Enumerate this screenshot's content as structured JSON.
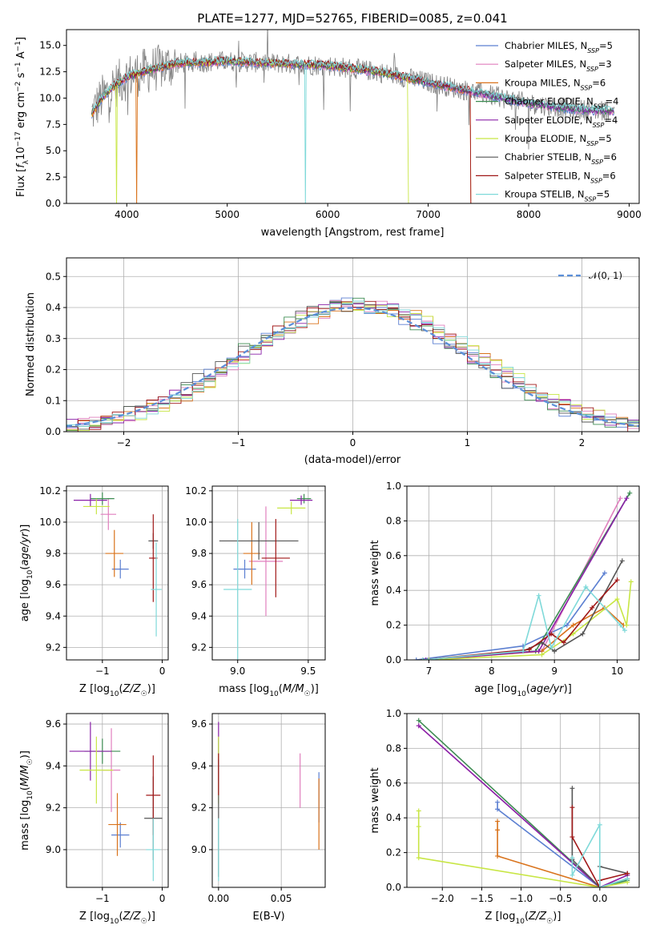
{
  "title": "PLATE=1277, MJD=52765, FIBERID=0085, z=0.041",
  "colors": {
    "Chabrier MILES": "#5b7fd1",
    "Salpeter MILES": "#e07fbd",
    "Kroupa MILES": "#d9731c",
    "Chabrier ELODIE": "#3d8c52",
    "Salpeter ELODIE": "#8a21a8",
    "Kroupa ELODIE": "#c8e645",
    "Chabrier STELIB": "#555555",
    "Salpeter STELIB": "#a01818",
    "Kroupa STELIB": "#7fd9d9",
    "data": "#808080",
    "gaussian": "#5b8fd8"
  },
  "chart_data": [
    {
      "id": "spectrum",
      "type": "line",
      "title": "PLATE=1277, MJD=52765, FIBERID=0085, z=0.041",
      "xlabel": "wavelength [Angstrom, rest frame]",
      "ylabel": "Flux [f_λ 10^-17 erg cm^-2 s^-1 A^-1]",
      "xlim": [
        3400,
        9100
      ],
      "ylim": [
        0,
        16.5
      ],
      "xticks": [
        4000,
        5000,
        6000,
        7000,
        8000,
        9000
      ],
      "yticks": [
        0.0,
        2.5,
        5.0,
        7.5,
        10.0,
        12.5,
        15.0
      ],
      "grid": false,
      "legend_position": "top-right",
      "legend": [
        {
          "name": "Chabrier MILES",
          "nssp": "5"
        },
        {
          "name": "Salpeter MILES",
          "nssp": "3"
        },
        {
          "name": "Kroupa MILES",
          "nssp": "6"
        },
        {
          "name": "Chabrier ELODIE",
          "nssp": "4"
        },
        {
          "name": "Salpeter ELODIE",
          "nssp": "4"
        },
        {
          "name": "Kroupa ELODIE",
          "nssp": "5"
        },
        {
          "name": "Chabrier STELIB",
          "nssp": "6"
        },
        {
          "name": "Salpeter STELIB",
          "nssp": "6"
        },
        {
          "name": "Kroupa STELIB",
          "nssp": "5"
        }
      ],
      "continuum": {
        "x": [
          3650,
          3750,
          3850,
          4000,
          4200,
          4500,
          5000,
          5500,
          6000,
          6500,
          7000,
          7500,
          8000,
          8500,
          8800
        ],
        "y": [
          8.5,
          10.0,
          11.0,
          12.0,
          12.6,
          13.3,
          13.5,
          13.3,
          13.1,
          12.5,
          11.5,
          10.5,
          9.5,
          8.9,
          8.8
        ]
      },
      "data_range": [
        3650,
        8800
      ],
      "model_range": [
        3650,
        8850
      ],
      "model_cutoffs": [
        {
          "model": "Kroupa ELODIE",
          "x": 6800
        },
        {
          "model": "Salpeter STELIB",
          "x": 7420
        },
        {
          "model": "Kroupa MILES",
          "x": 7420
        }
      ],
      "absorption_spikes": [
        {
          "x": 3900,
          "model": "Kroupa ELODIE"
        },
        {
          "x": 4100,
          "model": "Kroupa MILES"
        },
        {
          "x": 5780,
          "model": "Kroupa STELIB"
        },
        {
          "x": 6810,
          "model": "Kroupa ELODIE"
        }
      ]
    },
    {
      "id": "residual-histogram",
      "type": "bar",
      "xlabel": "(data-model)/error",
      "ylabel": "Normed distribution",
      "xlim": [
        -2.5,
        2.5
      ],
      "ylim": [
        0,
        0.56
      ],
      "xticks": [
        -2,
        -1,
        0,
        1,
        2
      ],
      "yticks": [
        0.0,
        0.1,
        0.2,
        0.3,
        0.4,
        0.5
      ],
      "grid": true,
      "bin_width": 0.1,
      "reference": {
        "name": "𝒩(0, 1)",
        "mean": 0,
        "sigma": 1
      },
      "legend_position": "top-right"
    },
    {
      "id": "age-vs-Z",
      "type": "scatter",
      "xlabel": "Z [log10(Z/Z☉)]",
      "ylabel": "age [log10(age/yr)]",
      "xlim": [
        -1.6,
        0.1
      ],
      "ylim": [
        9.12,
        10.23
      ],
      "xticks": [
        -1,
        0
      ],
      "yticks": [
        9.2,
        9.4,
        9.6,
        9.8,
        10.0,
        10.2
      ],
      "grid": true,
      "points": [
        {
          "model": "Chabrier MILES",
          "x": -0.7,
          "xerr": 0.14,
          "y": 9.7,
          "yerr": 0.06
        },
        {
          "model": "Salpeter MILES",
          "x": -0.9,
          "xerr": 0.13,
          "y": 10.05,
          "yerr": 0.1
        },
        {
          "model": "Kroupa MILES",
          "x": -0.8,
          "xerr": 0.15,
          "y": 9.8,
          "yerr": 0.15
        },
        {
          "model": "Chabrier ELODIE",
          "x": -1.0,
          "xerr": 0.2,
          "y": 10.15,
          "yerr": 0.04
        },
        {
          "model": "Salpeter ELODIE",
          "x": -1.2,
          "xerr": 0.28,
          "y": 10.14,
          "yerr": 0.04
        },
        {
          "model": "Kroupa ELODIE",
          "x": -1.1,
          "xerr": 0.22,
          "y": 10.1,
          "yerr": 0.05
        },
        {
          "model": "Chabrier STELIB",
          "x": -0.15,
          "xerr": 0.08,
          "y": 9.88,
          "yerr": 0.05
        },
        {
          "model": "Salpeter STELIB",
          "x": -0.15,
          "xerr": 0.07,
          "y": 9.77,
          "yerr": 0.28
        },
        {
          "model": "Kroupa STELIB",
          "x": -0.1,
          "xerr": 0.09,
          "y": 9.57,
          "yerr": 0.3
        }
      ]
    },
    {
      "id": "age-vs-mass",
      "type": "scatter",
      "xlabel": "mass [log10(M/M☉)]",
      "ylabel": "",
      "xlim": [
        8.82,
        9.62
      ],
      "ylim": [
        9.12,
        10.23
      ],
      "xticks": [
        9.0,
        9.5
      ],
      "yticks": [
        9.2,
        9.4,
        9.6,
        9.8,
        10.0,
        10.2
      ],
      "grid": true,
      "points": [
        {
          "model": "Chabrier MILES",
          "x": 9.05,
          "xerr": 0.08,
          "y": 9.7,
          "yerr": 0.06
        },
        {
          "model": "Salpeter MILES",
          "x": 9.2,
          "xerr": 0.12,
          "y": 9.75,
          "yerr": 0.35
        },
        {
          "model": "Kroupa MILES",
          "x": 9.1,
          "xerr": 0.06,
          "y": 9.8,
          "yerr": 0.2
        },
        {
          "model": "Chabrier ELODIE",
          "x": 9.47,
          "xerr": 0.05,
          "y": 10.15,
          "yerr": 0.03
        },
        {
          "model": "Salpeter ELODIE",
          "x": 9.45,
          "xerr": 0.08,
          "y": 10.14,
          "yerr": 0.03
        },
        {
          "model": "Kroupa ELODIE",
          "x": 9.38,
          "xerr": 0.1,
          "y": 10.09,
          "yerr": 0.04
        },
        {
          "model": "Chabrier STELIB",
          "x": 9.15,
          "xerr": 0.28,
          "y": 9.88,
          "yerr": 0.12
        },
        {
          "model": "Salpeter STELIB",
          "x": 9.27,
          "xerr": 0.1,
          "y": 9.77,
          "yerr": 0.25
        },
        {
          "model": "Kroupa STELIB",
          "x": 9.0,
          "xerr": 0.1,
          "y": 9.57,
          "yerr": 0.45
        }
      ]
    },
    {
      "id": "mass-weight-vs-age",
      "type": "line",
      "xlabel": "age [log10(age/yr)]",
      "ylabel": "mass weight",
      "xlim": [
        6.65,
        10.35
      ],
      "ylim": [
        0,
        1.0
      ],
      "xticks": [
        7,
        8,
        9,
        10
      ],
      "yticks": [
        0.0,
        0.2,
        0.4,
        0.6,
        0.8,
        1.0
      ],
      "grid": true,
      "series": [
        {
          "model": "Chabrier MILES",
          "x": [
            6.8,
            8.5,
            9.2,
            9.8
          ],
          "y": [
            0.0,
            0.08,
            0.2,
            0.5
          ]
        },
        {
          "model": "Salpeter MILES",
          "x": [
            6.9,
            8.8,
            10.05
          ],
          "y": [
            0.0,
            0.05,
            0.93
          ]
        },
        {
          "model": "Kroupa MILES",
          "x": [
            7.0,
            8.8,
            9.3,
            9.8,
            10.1
          ],
          "y": [
            0.0,
            0.05,
            0.2,
            0.3,
            0.2
          ]
        },
        {
          "model": "Chabrier ELODIE",
          "x": [
            6.9,
            8.7,
            10.2
          ],
          "y": [
            0.0,
            0.05,
            0.96
          ]
        },
        {
          "model": "Salpeter ELODIE",
          "x": [
            6.95,
            8.75,
            10.15
          ],
          "y": [
            0.0,
            0.05,
            0.93
          ]
        },
        {
          "model": "Kroupa ELODIE",
          "x": [
            7.0,
            8.8,
            9.3,
            10.0,
            10.15,
            10.22
          ],
          "y": [
            0.0,
            0.03,
            0.15,
            0.35,
            0.2,
            0.45
          ]
        },
        {
          "model": "Chabrier STELIB",
          "x": [
            6.9,
            8.5,
            8.8,
            9.0,
            9.45,
            10.08
          ],
          "y": [
            0.0,
            0.05,
            0.1,
            0.05,
            0.15,
            0.57
          ]
        },
        {
          "model": "Salpeter STELIB",
          "x": [
            6.9,
            8.6,
            8.95,
            9.15,
            9.6,
            10.0
          ],
          "y": [
            0.0,
            0.06,
            0.15,
            0.1,
            0.3,
            0.46
          ]
        },
        {
          "model": "Kroupa STELIB",
          "x": [
            6.9,
            8.5,
            8.75,
            8.95,
            9.5,
            10.05,
            10.12
          ],
          "y": [
            0.0,
            0.05,
            0.37,
            0.07,
            0.42,
            0.2,
            0.17
          ]
        }
      ]
    },
    {
      "id": "mass-vs-Z",
      "type": "scatter",
      "xlabel": "Z [log10(Z/Z☉)]",
      "ylabel": "mass [log10(M/M☉)]",
      "xlim": [
        -1.6,
        0.1
      ],
      "ylim": [
        8.82,
        9.65
      ],
      "xticks": [
        -1,
        0
      ],
      "yticks": [
        9.0,
        9.2,
        9.4,
        9.6
      ],
      "grid": true,
      "points": [
        {
          "model": "Chabrier MILES",
          "x": -0.7,
          "xerr": 0.15,
          "y": 9.07,
          "yerr": 0.06
        },
        {
          "model": "Salpeter MILES",
          "x": -0.85,
          "xerr": 0.15,
          "y": 9.38,
          "yerr": 0.2
        },
        {
          "model": "Kroupa MILES",
          "x": -0.75,
          "xerr": 0.15,
          "y": 9.12,
          "yerr": 0.15
        },
        {
          "model": "Chabrier ELODIE",
          "x": -1.0,
          "xerr": 0.3,
          "y": 9.47,
          "yerr": 0.06
        },
        {
          "model": "Salpeter ELODIE",
          "x": -1.2,
          "xerr": 0.35,
          "y": 9.47,
          "yerr": 0.14
        },
        {
          "model": "Kroupa ELODIE",
          "x": -1.1,
          "xerr": 0.28,
          "y": 9.38,
          "yerr": 0.16
        },
        {
          "model": "Chabrier STELIB",
          "x": -0.15,
          "xerr": 0.15,
          "y": 9.15,
          "yerr": 0.2
        },
        {
          "model": "Salpeter STELIB",
          "x": -0.15,
          "xerr": 0.12,
          "y": 9.26,
          "yerr": 0.19
        },
        {
          "model": "Kroupa STELIB",
          "x": -0.15,
          "xerr": 0.12,
          "y": 9.0,
          "yerr": 0.15
        }
      ]
    },
    {
      "id": "mass-vs-EBV",
      "type": "scatter",
      "xlabel": "E(B-V)",
      "ylabel": "",
      "xlim": [
        -0.005,
        0.085
      ],
      "ylim": [
        8.82,
        9.65
      ],
      "xticks": [
        0.0,
        0.05
      ],
      "yticks": [
        9.0,
        9.2,
        9.4,
        9.6
      ],
      "grid": true,
      "points": [
        {
          "model": "Chabrier MILES",
          "x": 0.08,
          "y": 9.25,
          "yerr": 0.12
        },
        {
          "model": "Salpeter MILES",
          "x": 0.065,
          "y": 9.33,
          "yerr": 0.13
        },
        {
          "model": "Kroupa MILES",
          "x": 0.08,
          "y": 9.17,
          "yerr": 0.17
        },
        {
          "model": "Chabrier ELODIE",
          "x": 0.0,
          "y": 9.47,
          "yerr": 0.06
        },
        {
          "model": "Salpeter ELODIE",
          "x": 0.0,
          "y": 9.47,
          "yerr": 0.14
        },
        {
          "model": "Kroupa ELODIE",
          "x": 0.0,
          "y": 9.38,
          "yerr": 0.16
        },
        {
          "model": "Chabrier STELIB",
          "x": 0.0,
          "y": 9.15,
          "yerr": 0.28
        },
        {
          "model": "Salpeter STELIB",
          "x": 0.0,
          "y": 9.36,
          "yerr": 0.1
        },
        {
          "model": "Kroupa STELIB",
          "x": 0.0,
          "y": 9.0,
          "yerr": 0.15
        }
      ]
    },
    {
      "id": "mass-weight-vs-Z",
      "type": "line",
      "xlabel": "Z [log10(Z/Z☉)]",
      "ylabel": "mass weight",
      "xlim": [
        -2.45,
        0.5
      ],
      "ylim": [
        0,
        1.0
      ],
      "xticks": [
        -2.0,
        -1.5,
        -1.0,
        -0.5,
        0.0
      ],
      "yticks": [
        0.0,
        0.2,
        0.4,
        0.6,
        0.8,
        1.0
      ],
      "grid": true,
      "series": [
        {
          "model": "Chabrier MILES",
          "x": [
            -1.3,
            -1.3,
            0.0,
            0.35
          ],
          "y": [
            0.49,
            0.45,
            0.0,
            0.05
          ]
        },
        {
          "model": "Salpeter MILES",
          "x": [
            -2.3,
            0.0,
            0.35
          ],
          "y": [
            0.93,
            0.0,
            0.07
          ]
        },
        {
          "model": "Kroupa MILES",
          "x": [
            -1.3,
            -1.3,
            -1.3,
            0.0,
            0.35
          ],
          "y": [
            0.38,
            0.33,
            0.18,
            0.0,
            0.05
          ]
        },
        {
          "model": "Chabrier ELODIE",
          "x": [
            -2.3,
            0.0,
            0.35
          ],
          "y": [
            0.96,
            0.0,
            0.04
          ]
        },
        {
          "model": "Salpeter ELODIE",
          "x": [
            -2.3,
            0.0,
            0.35
          ],
          "y": [
            0.93,
            0.0,
            0.07
          ]
        },
        {
          "model": "Kroupa ELODIE",
          "x": [
            -2.3,
            -2.3,
            -2.3,
            0.0,
            0.35
          ],
          "y": [
            0.44,
            0.35,
            0.17,
            0.0,
            0.03
          ]
        },
        {
          "model": "Chabrier STELIB",
          "x": [
            -0.35,
            -0.35,
            0.0,
            0.0,
            0.35
          ],
          "y": [
            0.57,
            0.16,
            0.0,
            0.12,
            0.08
          ]
        },
        {
          "model": "Salpeter STELIB",
          "x": [
            -0.35,
            -0.35,
            0.0,
            0.0,
            0.35
          ],
          "y": [
            0.46,
            0.29,
            0.0,
            0.04,
            0.08
          ]
        },
        {
          "model": "Kroupa STELIB",
          "x": [
            -0.35,
            -0.35,
            0.0,
            0.0,
            0.35
          ],
          "y": [
            0.17,
            0.07,
            0.36,
            0.0,
            0.05
          ]
        }
      ]
    }
  ]
}
